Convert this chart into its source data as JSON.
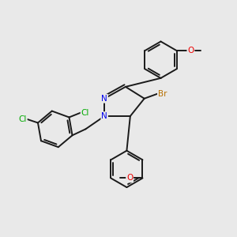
{
  "background_color": "#e9e9e9",
  "bond_color": "#1a1a1a",
  "atom_colors": {
    "N": "#0000ee",
    "Br": "#b87000",
    "Cl": "#00aa00",
    "O": "#ee0000",
    "C": "#1a1a1a"
  },
  "figsize": [
    3.0,
    3.0
  ],
  "dpi": 100
}
